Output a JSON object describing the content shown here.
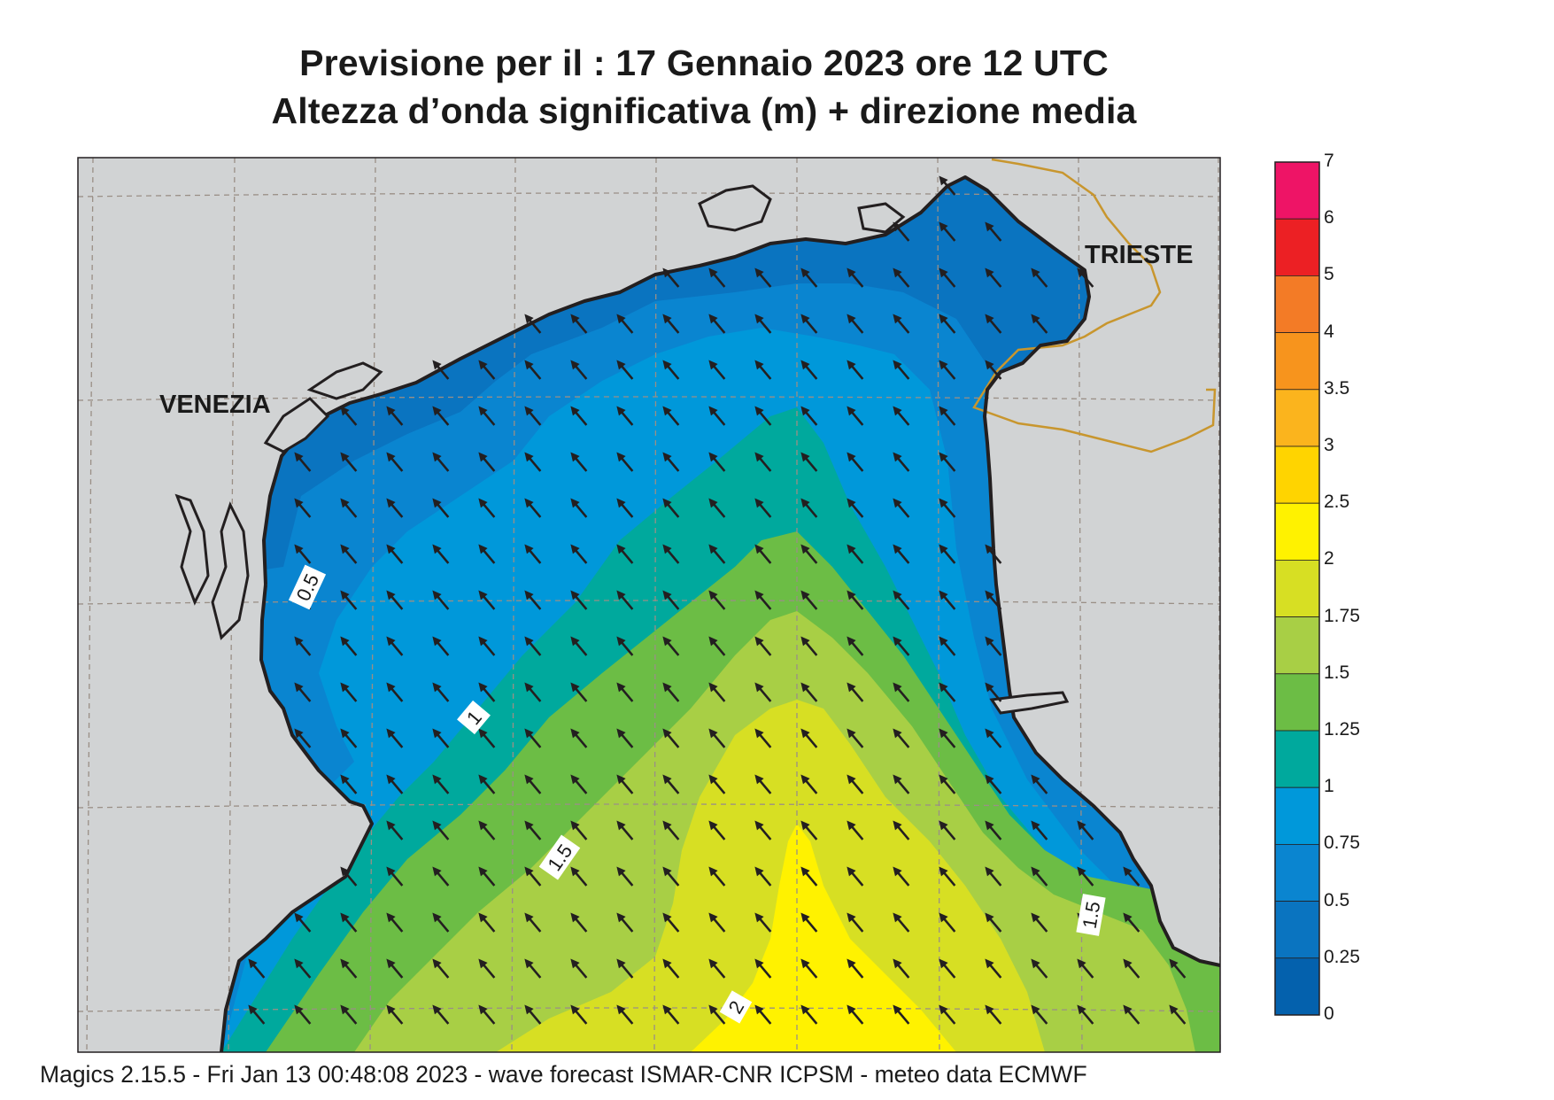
{
  "title": {
    "line1": "Previsione per il  :  17  Gennaio  2023   ore 12 UTC",
    "line2": "Altezza d’onda significativa (m) + direzione media"
  },
  "places": {
    "venezia": "VENEZIA",
    "trieste": "TRIESTE"
  },
  "contour_labels": [
    "0.5",
    "1",
    "1.5",
    "1.5",
    "2"
  ],
  "legend": {
    "labels": [
      "7",
      "6",
      "5",
      "4",
      "3.5",
      "3",
      "2.5",
      "2",
      "1.75",
      "1.5",
      "1.25",
      "1",
      "0.75",
      "0.5",
      "0.25",
      "0"
    ],
    "colors": [
      "#ee1466",
      "#ec2024",
      "#f37b26",
      "#f7941d",
      "#fbb41d",
      "#ffd400",
      "#fff200",
      "#d7df23",
      "#a8cf45",
      "#6cbd45",
      "#00a99d",
      "#0098da",
      "#0a85d0",
      "#0a74c0",
      "#0461ad"
    ]
  },
  "footer": "Magics 2.15.5 - Fri Jan 13 00:48:08 2023 - wave forecast  ISMAR-CNR  ICPSM - meteo data    ECMWF",
  "map": {
    "land_color": "#d1d3d4",
    "coast_color": "#231f20",
    "border_color": "#c8962e",
    "wave_direction": "north-west"
  }
}
